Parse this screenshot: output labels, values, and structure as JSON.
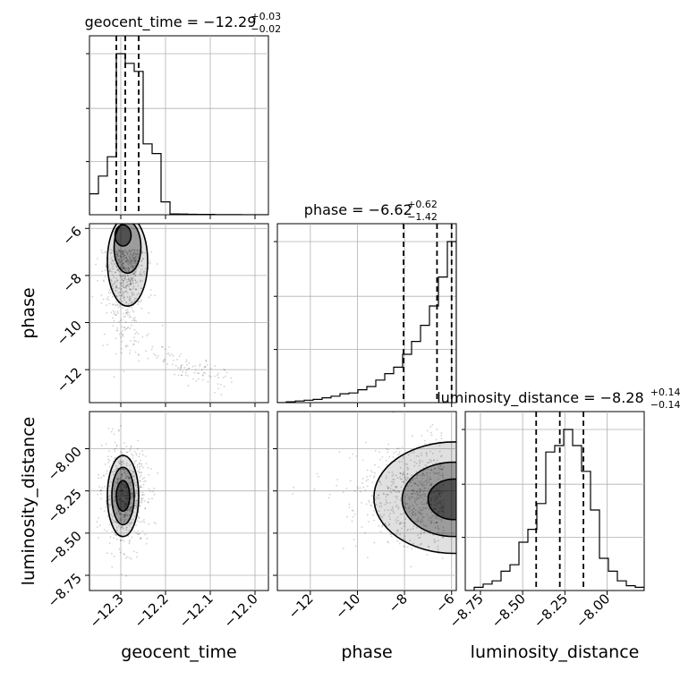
{
  "chart_data": {
    "type": "corner",
    "parameters": [
      "geocent_time",
      "phase",
      "luminosity_distance"
    ],
    "axis_labels": {
      "geocent_time": "geocent_time",
      "phase": "phase",
      "luminosity_distance": "luminosity_distance"
    },
    "ranges": {
      "geocent_time": [
        -12.37,
        -11.97
      ],
      "phase": [
        -13.4,
        -5.8
      ],
      "luminosity_distance": [
        -8.84,
        -7.78
      ]
    },
    "ticks": {
      "geocent_time": [
        -12.3,
        -12.2,
        -12.1,
        -12.0
      ],
      "phase": [
        -12,
        -10,
        -8,
        -6
      ],
      "luminosity_distance": [
        -8.75,
        -8.5,
        -8.25,
        -8.0
      ]
    },
    "tick_labels": {
      "geocent_time": [
        "−12.3",
        "−12.2",
        "−12.1",
        "−12.0"
      ],
      "phase": [
        "−12",
        "−10",
        "−8",
        "−6"
      ],
      "luminosity_distance": [
        "−8.75",
        "−8.50",
        "−8.25",
        "−8.00"
      ]
    },
    "titles": {
      "geocent_time": {
        "main": "geocent_time = −12.29",
        "plus": "+0.03",
        "minus": "−0.02"
      },
      "phase": {
        "main": "phase = −6.62",
        "plus": "+0.62",
        "minus": "−1.42"
      },
      "luminosity_distance": {
        "main": "luminosity_distance = −8.28",
        "plus": "+0.14",
        "minus": "−0.14"
      }
    },
    "histograms": {
      "geocent_time": {
        "edges": [
          -12.37,
          -12.35,
          -12.33,
          -12.31,
          -12.29,
          -12.27,
          -12.25,
          -12.23,
          -12.21,
          -12.19,
          -12.17,
          -12.15,
          -12.13,
          -12.11,
          -12.09,
          -12.07,
          -12.05,
          -12.03,
          -12.01,
          -11.99,
          -11.97
        ],
        "counts": [
          0.13,
          0.24,
          0.36,
          1.0,
          0.94,
          0.89,
          0.44,
          0.38,
          0.08,
          0.005,
          0.004,
          0.003,
          0.002,
          0.002,
          0.001,
          0.001,
          0.001,
          0.0,
          0.0,
          0.0
        ],
        "quantiles": [
          -12.31,
          -12.29,
          -12.26
        ]
      },
      "phase": {
        "edges": [
          -13.4,
          -13.02,
          -12.64,
          -12.26,
          -11.88,
          -11.5,
          -11.12,
          -10.74,
          -10.36,
          -9.98,
          -9.6,
          -9.22,
          -8.84,
          -8.46,
          -8.08,
          -7.7,
          -7.32,
          -6.94,
          -6.56,
          -6.18,
          -5.8
        ],
        "counts": [
          0.0,
          0.005,
          0.01,
          0.015,
          0.02,
          0.03,
          0.04,
          0.055,
          0.06,
          0.08,
          0.1,
          0.14,
          0.18,
          0.22,
          0.3,
          0.38,
          0.48,
          0.6,
          0.78,
          1.0
        ],
        "quantiles": [
          -8.04,
          -6.62,
          -6.0
        ]
      },
      "luminosity_distance": {
        "edges": [
          -8.84,
          -8.787,
          -8.734,
          -8.681,
          -8.628,
          -8.575,
          -8.522,
          -8.469,
          -8.416,
          -8.363,
          -8.31,
          -8.257,
          -8.204,
          -8.151,
          -8.098,
          -8.045,
          -7.992,
          -7.939,
          -7.886,
          -7.833,
          -7.78
        ],
        "counts": [
          0.0,
          0.02,
          0.04,
          0.06,
          0.12,
          0.16,
          0.3,
          0.38,
          0.54,
          0.86,
          0.9,
          1.0,
          0.9,
          0.74,
          0.5,
          0.2,
          0.12,
          0.06,
          0.03,
          0.02
        ],
        "quantiles": [
          -8.42,
          -8.28,
          -8.14
        ]
      }
    },
    "grid": true
  }
}
